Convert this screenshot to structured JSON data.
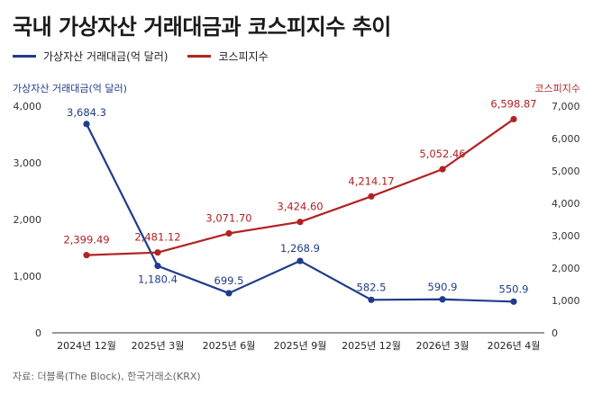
{
  "title": "국내 가상자산 거래대금과 코스피지수 추이",
  "legend": [
    {
      "label": "가상자산 거래대금(억 달러)",
      "color": "#1f3c8a"
    },
    {
      "label": "코스피지수",
      "color": "#b22222"
    }
  ],
  "source": "자료: 더블록(The Block), 한국거래소(KRX)",
  "chart_data": {
    "type": "line",
    "categories": [
      "2024년 12월",
      "2025년 3월",
      "2025년 6월",
      "2025년 9월",
      "2025년 12월",
      "2026년 3월",
      "2026년 4월"
    ],
    "y_left": {
      "label": "가상자산 거래대금(억 달러)",
      "range": [
        0,
        4000
      ],
      "ticks": [
        "0",
        "1,000",
        "2,000",
        "3,000",
        "4,000"
      ]
    },
    "y_right": {
      "label": "코스피지수",
      "range": [
        0,
        7000
      ],
      "ticks": [
        "0",
        "1,000",
        "2,000",
        "3,000",
        "4,000",
        "5,000",
        "6,000",
        "7,000"
      ]
    },
    "series": [
      {
        "name": "가상자산 거래대금(억 달러)",
        "axis": "left",
        "color": "#1f3c8a",
        "values": [
          3684.3,
          1180.4,
          699.5,
          1268.9,
          582.5,
          590.9,
          550.9
        ],
        "labels": [
          "3,684.3",
          "1,180.4",
          "699.5",
          "1,268.9",
          "582.5",
          "590.9",
          "550.9"
        ]
      },
      {
        "name": "코스피지수",
        "axis": "right",
        "color": "#b22222",
        "values": [
          2399.49,
          2481.12,
          3071.7,
          3424.6,
          4214.17,
          5052.46,
          6598.87
        ],
        "labels": [
          "2,399.49",
          "2,481.12",
          "3,071.70",
          "3,424.60",
          "4,214.17",
          "5,052.46",
          "6,598.87"
        ]
      }
    ],
    "grid": false,
    "legend_position": "top-left"
  }
}
